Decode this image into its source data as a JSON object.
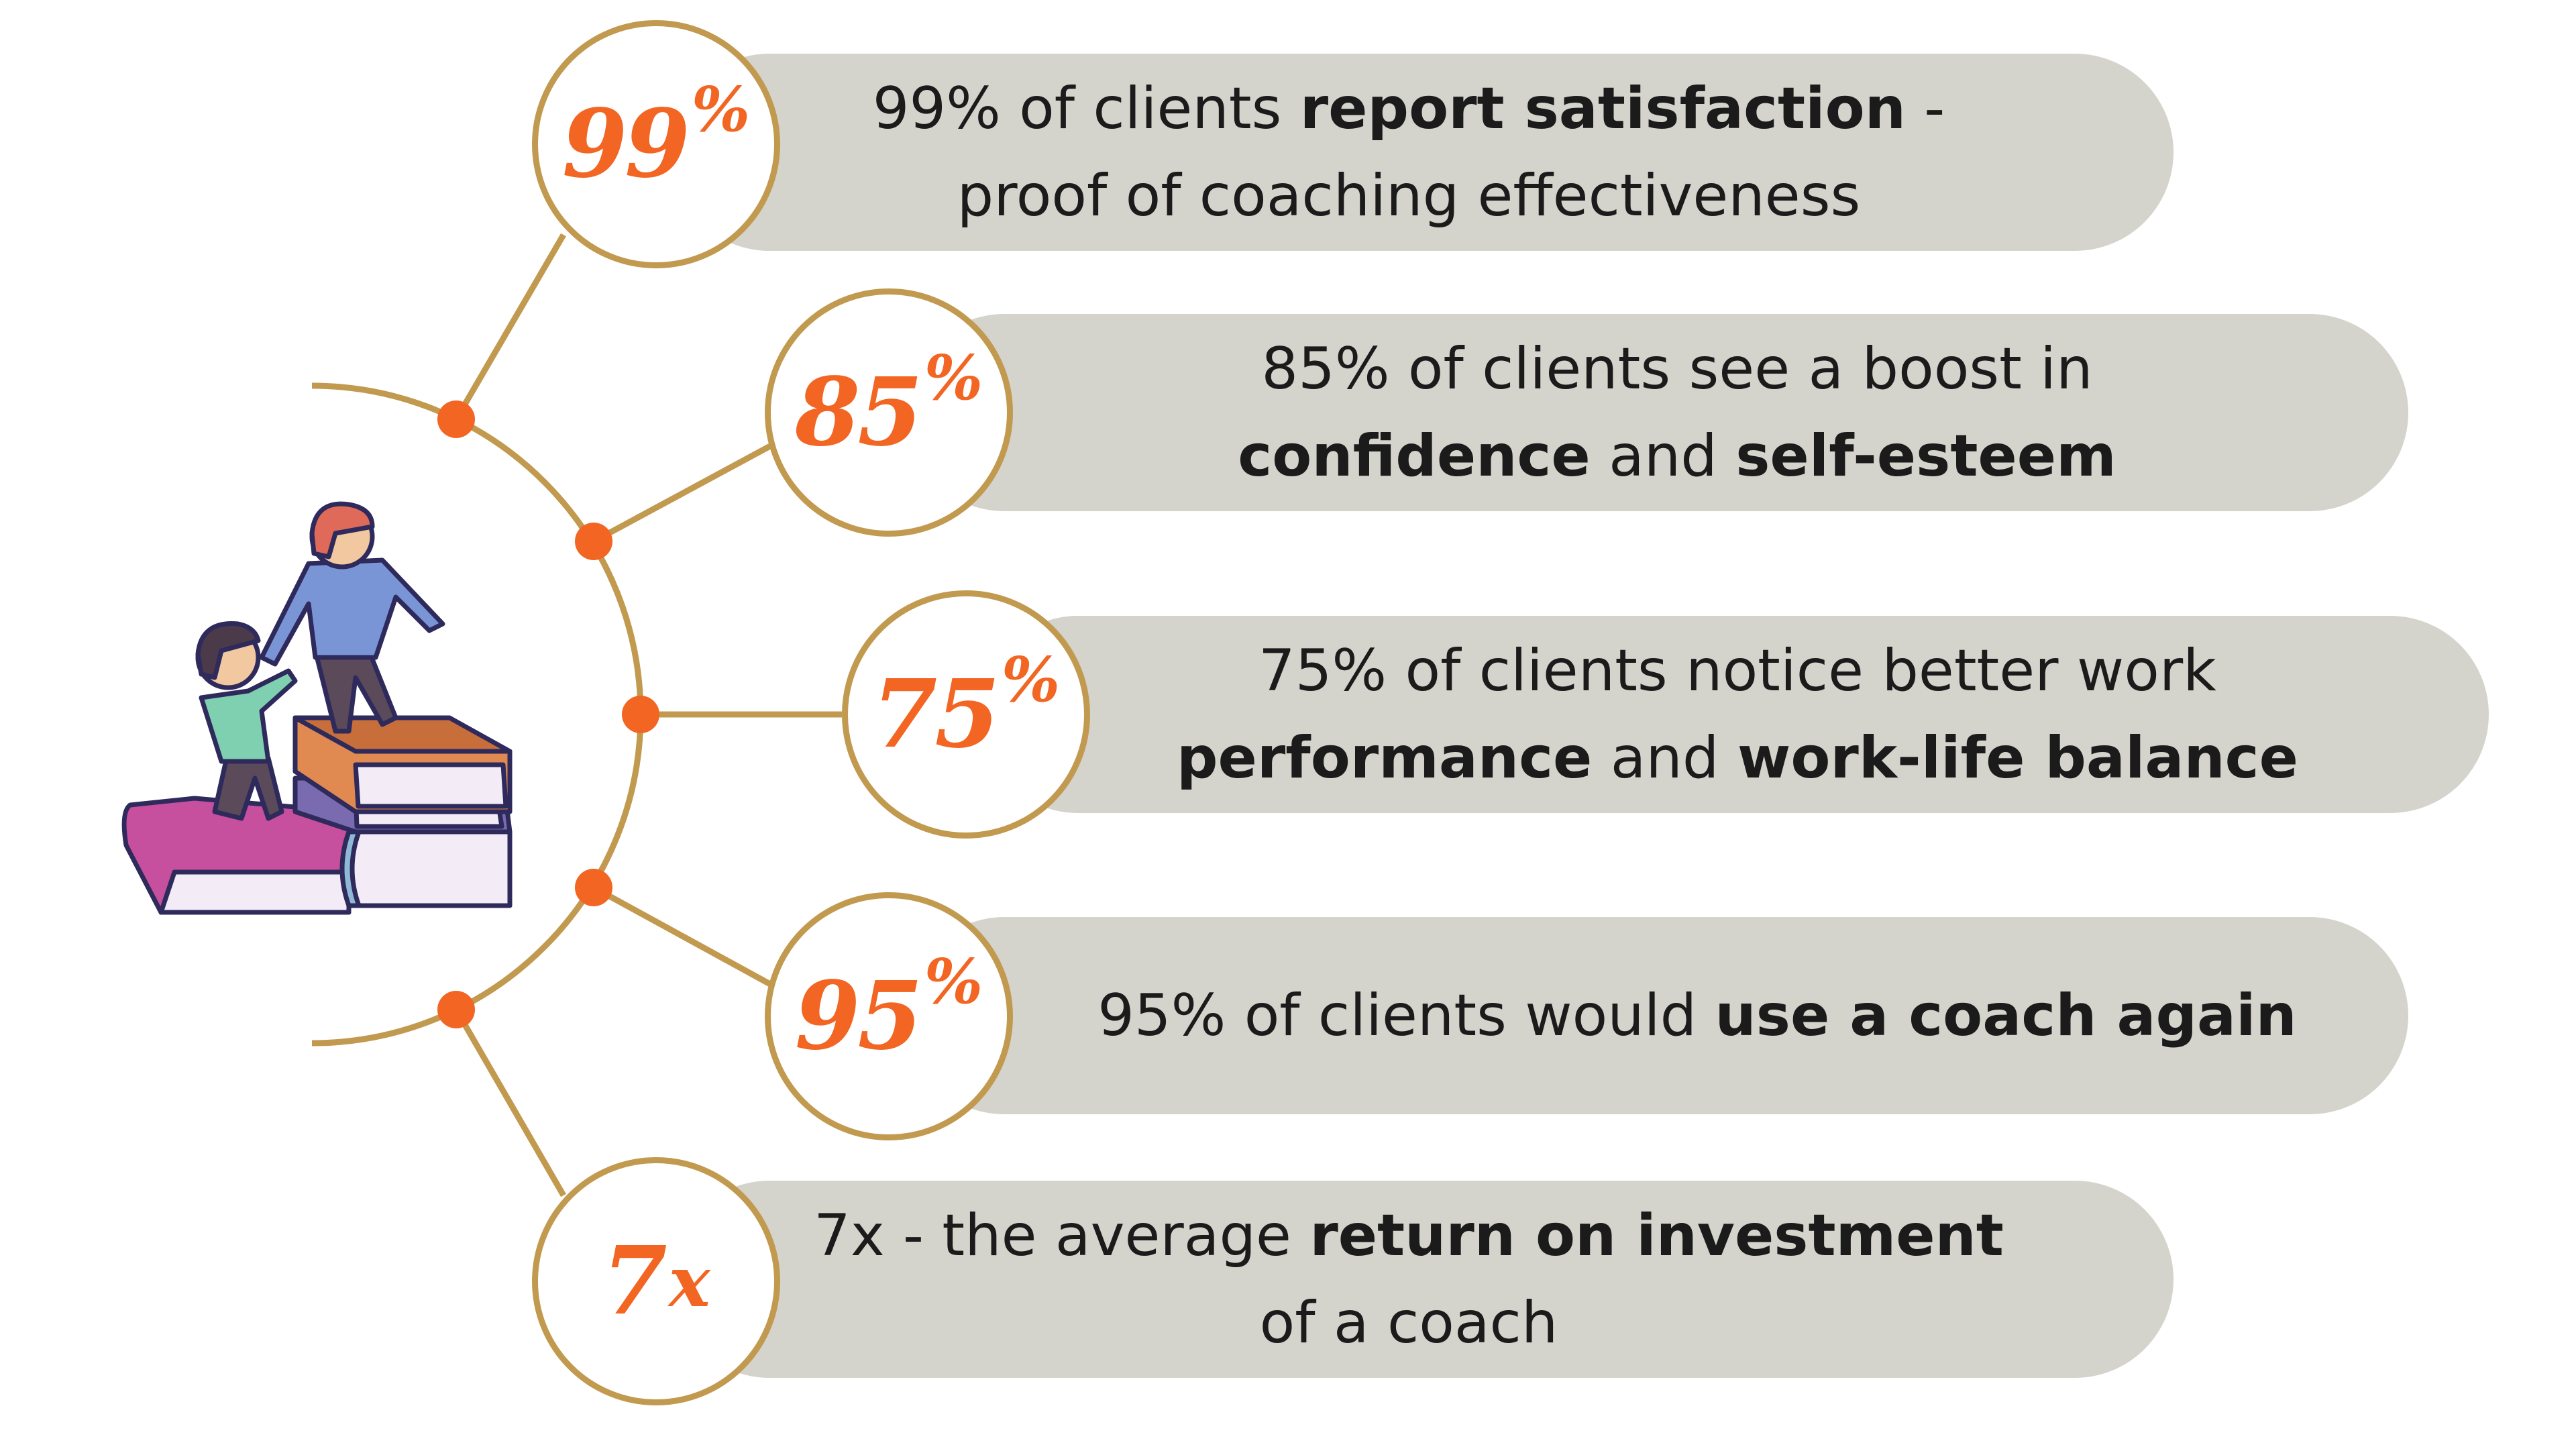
{
  "colors": {
    "accent": "#f26522",
    "line": "#c19a4f",
    "pill": "#d4d3cc",
    "text": "#1b1b1b"
  },
  "illustration": {
    "icon": "helping-hand-on-books-icon"
  },
  "stats": [
    {
      "badge": {
        "number": "99",
        "unit": "%"
      },
      "lines": [
        [
          {
            "text": "99% of clients ",
            "bold": false
          },
          {
            "text": "report satisfaction",
            "bold": true
          },
          {
            "text": " -",
            "bold": false
          }
        ],
        [
          {
            "text": "proof of coaching effectiveness",
            "bold": false
          }
        ]
      ]
    },
    {
      "badge": {
        "number": "85",
        "unit": "%"
      },
      "lines": [
        [
          {
            "text": "85% of clients see a boost in",
            "bold": false
          }
        ],
        [
          {
            "text": "confidence",
            "bold": true
          },
          {
            "text": " and ",
            "bold": false
          },
          {
            "text": "self-esteem",
            "bold": true
          }
        ]
      ]
    },
    {
      "badge": {
        "number": "75",
        "unit": "%"
      },
      "lines": [
        [
          {
            "text": "75% of clients notice better work",
            "bold": false
          }
        ],
        [
          {
            "text": "performance",
            "bold": true
          },
          {
            "text": " and ",
            "bold": false
          },
          {
            "text": "work-life balance",
            "bold": true
          }
        ]
      ]
    },
    {
      "badge": {
        "number": "95",
        "unit": "%"
      },
      "lines": [
        [
          {
            "text": "95% of clients would ",
            "bold": false
          },
          {
            "text": "use a coach again",
            "bold": true
          }
        ]
      ]
    },
    {
      "badge": {
        "number": "7",
        "unit": "x"
      },
      "lines": [
        [
          {
            "text": "7x - the average ",
            "bold": false
          },
          {
            "text": "return on investment",
            "bold": true
          }
        ],
        [
          {
            "text": "of a coach",
            "bold": false
          }
        ]
      ]
    }
  ]
}
